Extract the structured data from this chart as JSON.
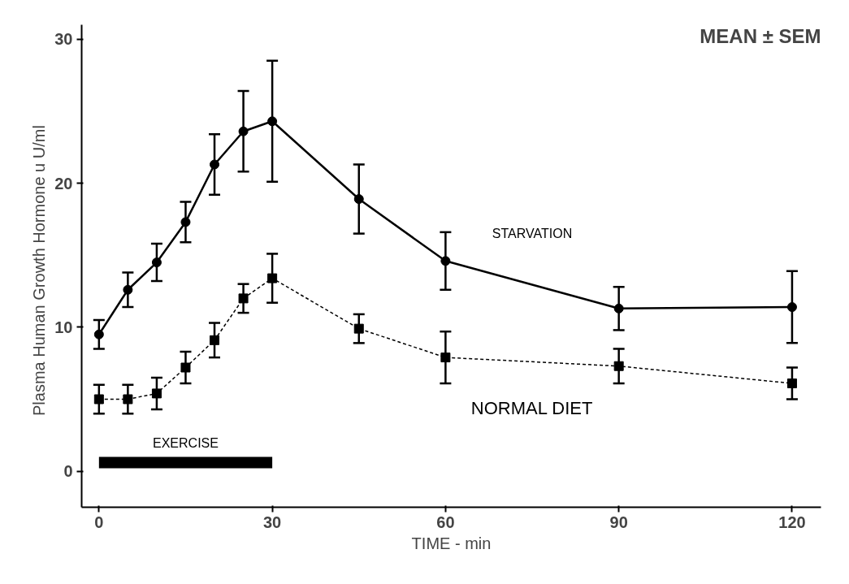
{
  "chart_data": {
    "type": "line",
    "xlabel": "TIME - min",
    "ylabel": "Plasma Human Growth Hormone   u U/ml",
    "x": [
      0,
      5,
      10,
      15,
      20,
      25,
      30,
      45,
      60,
      90,
      120
    ],
    "series": [
      {
        "name": "STARVATION",
        "color": "#000000",
        "marker": "circle",
        "line_style": "solid",
        "values": [
          9.5,
          12.6,
          14.5,
          17.3,
          21.3,
          23.6,
          24.3,
          18.9,
          14.6,
          11.3,
          11.4
        ],
        "errors": [
          1.0,
          1.2,
          1.3,
          1.4,
          2.1,
          2.8,
          4.2,
          2.4,
          2.0,
          1.5,
          2.5
        ]
      },
      {
        "name": "NORMAL DIET",
        "color": "#000000",
        "marker": "square",
        "line_style": "dashed",
        "values": [
          5.0,
          5.0,
          5.4,
          7.2,
          9.1,
          12.0,
          13.4,
          9.9,
          7.9,
          7.3,
          6.1
        ],
        "errors": [
          1.0,
          1.0,
          1.1,
          1.1,
          1.2,
          1.0,
          1.7,
          1.0,
          1.8,
          1.2,
          1.1
        ]
      },
      {
        "name": "EXERCISE",
        "color": "#000000",
        "marker": "none",
        "line_style": "solid",
        "x": [
          0,
          30
        ],
        "values": [
          0.6,
          0.6
        ]
      }
    ],
    "annotations": [
      "MEAN ± SEM"
    ],
    "xlim": [
      -3,
      125
    ],
    "ylim": [
      -2.5,
      31
    ],
    "xticks": [
      0,
      30,
      60,
      90,
      120
    ],
    "yticks": [
      0,
      10,
      20,
      30
    ],
    "grid": false
  }
}
